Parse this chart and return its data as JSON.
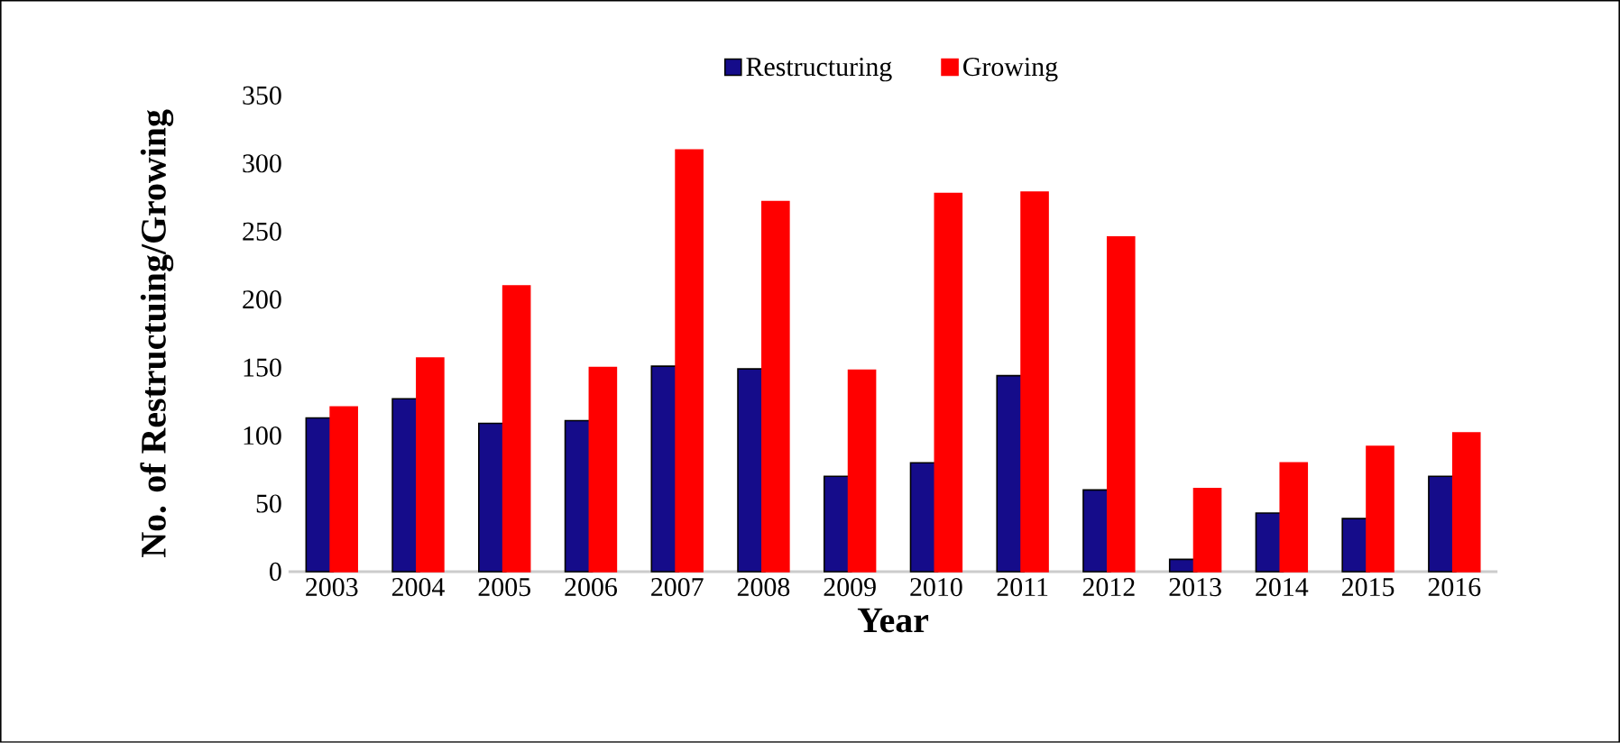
{
  "chart_data": {
    "type": "bar",
    "xlabel": "Year",
    "ylabel": "No. of Restructuing/Growing",
    "categories": [
      "2003",
      "2004",
      "2005",
      "2006",
      "2007",
      "2008",
      "2009",
      "2010",
      "2011",
      "2012",
      "2013",
      "2014",
      "2015",
      "2016"
    ],
    "series": [
      {
        "name": "Restructuring",
        "color": "#150c8a",
        "values": [
          113,
          127,
          109,
          111,
          151,
          149,
          70,
          80,
          144,
          60,
          9,
          43,
          39,
          70
        ]
      },
      {
        "name": "Growing",
        "color": "#ff0000",
        "values": [
          121,
          157,
          210,
          150,
          310,
          272,
          148,
          278,
          279,
          246,
          61,
          80,
          92,
          102
        ]
      }
    ],
    "ylim": [
      0,
      350
    ],
    "yticks": [
      0,
      50,
      100,
      150,
      200,
      250,
      300,
      350
    ],
    "grid": false,
    "legend": "top"
  }
}
